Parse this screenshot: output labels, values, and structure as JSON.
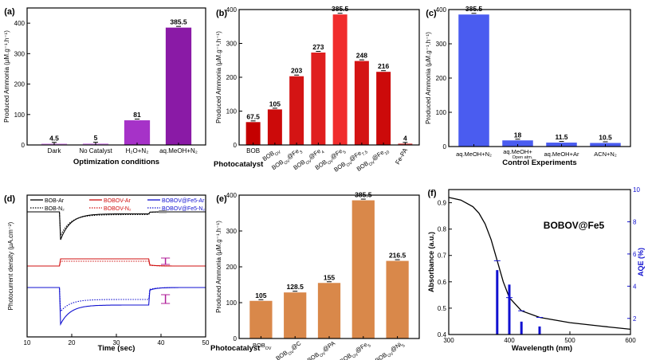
{
  "chart_data": [
    {
      "id": "a",
      "type": "bar",
      "panel_label": "(a)",
      "categories": [
        "Dark",
        "No Catalyst",
        "H₂O+N₂",
        "aq.MeOH+N₂"
      ],
      "values": [
        4.5,
        5,
        81,
        385.5
      ],
      "value_labels": [
        "4.5",
        "5",
        "81",
        "385.5"
      ],
      "colors": [
        "#dc96f0",
        "#dc96f0",
        "#a632c8",
        "#8a1aa6"
      ],
      "xlabel": "Optimization conditions",
      "ylabel": "Produced Ammonia (µM.g⁻¹.h⁻¹)",
      "ylim": [
        0,
        450
      ],
      "yticks": [
        "0",
        "100",
        "200",
        "300",
        "400"
      ]
    },
    {
      "id": "b",
      "type": "bar",
      "panel_label": "(b)",
      "categories": [
        "BOB",
        "BOBOV",
        "BOBOV@Fe3",
        "BOBOV@Fe4",
        "BOBOV@Fe5",
        "BOBOV@Fe7.5",
        "BOBOV@Fe10",
        "Fe-PA"
      ],
      "values": [
        67.5,
        105,
        203,
        273,
        385.5,
        248,
        216,
        4
      ],
      "value_labels": [
        "67.5",
        "105",
        "203",
        "273",
        "385.5",
        "248",
        "216",
        "4"
      ],
      "colors": [
        "#c40000",
        "#cc0a0a",
        "#d41414",
        "#e01e1e",
        "#f02c2c",
        "#d41414",
        "#cc0a0a",
        "#e04040"
      ],
      "xlabel": "Photocatalyst",
      "ylabel": "Produced Ammonia (µM.g⁻¹.h⁻¹)",
      "ylim": [
        0,
        400
      ],
      "yticks": [
        "0",
        "100",
        "200",
        "300",
        "400"
      ]
    },
    {
      "id": "c",
      "type": "bar",
      "panel_label": "(c)",
      "categories": [
        "aq.MeOH+N₂",
        "aq.MeOH+Open atm.",
        "aq.MeOH+Ar",
        "ACN+N₂"
      ],
      "values": [
        385.5,
        18,
        11.5,
        10.5
      ],
      "value_labels": [
        "385.5",
        "18",
        "11.5",
        "10.5"
      ],
      "colors": [
        "#4a5cf0",
        "#4a5cf0",
        "#4a5cf0",
        "#4a5cf0"
      ],
      "xlabel": "Control Experiments",
      "ylabel": "Produced Ammonia (µM.g⁻¹.h⁻¹)",
      "ylim": [
        0,
        400
      ],
      "yticks": [
        "0",
        "100",
        "200",
        "300",
        "400"
      ]
    },
    {
      "id": "d",
      "type": "line",
      "panel_label": "(d)",
      "xlabel": "Time (sec)",
      "ylabel": "Photocurrent density (µA.cm⁻²)",
      "xlim": [
        10,
        50
      ],
      "xticks": [
        "10",
        "20",
        "30",
        "40",
        "50"
      ],
      "light_on": 17.5,
      "light_off": 37.5,
      "legend": [
        {
          "name": "BOB-Ar",
          "color": "#000000",
          "style": "solid"
        },
        {
          "name": "BOB-N₂",
          "color": "#000000",
          "style": "dotted"
        },
        {
          "name": "BOBOV-Ar",
          "color": "#d01010",
          "style": "solid"
        },
        {
          "name": "BOBOV-N₂",
          "color": "#d01010",
          "style": "dotted"
        },
        {
          "name": "BOBOV@Fe5-Ar",
          "color": "#1010d0",
          "style": "solid"
        },
        {
          "name": "BOBOV@Fe5-N₂",
          "color": "#1010d0",
          "style": "dotted"
        }
      ]
    },
    {
      "id": "e",
      "type": "bar",
      "panel_label": "(e)",
      "categories": [
        "BOBOV",
        "BOBOV@C",
        "BOBOV@PA",
        "BOBOV@Fe5",
        "BOBOV@Ni5"
      ],
      "values": [
        105,
        128.5,
        155,
        385.5,
        216.5
      ],
      "value_labels": [
        "105",
        "128.5",
        "155",
        "385.5",
        "216.5"
      ],
      "colors": [
        "#d9884a",
        "#d9884a",
        "#d9884a",
        "#d9884a",
        "#d9884a"
      ],
      "xlabel": "Photocatalyst",
      "ylabel": "Produced Ammonia (µM.g⁻¹.h⁻¹)",
      "ylim": [
        0,
        400
      ],
      "yticks": [
        "0",
        "100",
        "200",
        "300",
        "400"
      ]
    },
    {
      "id": "f",
      "type": "line",
      "panel_label": "(f)",
      "title": "BOBOV@Fe5",
      "xlabel": "Wavelength (nm)",
      "ylabel": "Absorbance (a.u.)",
      "y2label": "AQE (%)",
      "xlim": [
        300,
        600
      ],
      "xticks": [
        "300",
        "400",
        "500",
        "600"
      ],
      "ylim": [
        0.4,
        0.95
      ],
      "yticks": [
        "0.4",
        "0.5",
        "0.6",
        "0.7",
        "0.8",
        "0.9"
      ],
      "y2lim": [
        1,
        10
      ],
      "y2ticks": [
        "2",
        "4",
        "6",
        "8",
        "10"
      ],
      "absorbance": [
        [
          300,
          0.92
        ],
        [
          320,
          0.91
        ],
        [
          340,
          0.885
        ],
        [
          350,
          0.86
        ],
        [
          360,
          0.82
        ],
        [
          370,
          0.76
        ],
        [
          380,
          0.68
        ],
        [
          390,
          0.6
        ],
        [
          400,
          0.54
        ],
        [
          420,
          0.49
        ],
        [
          450,
          0.465
        ],
        [
          500,
          0.445
        ],
        [
          550,
          0.432
        ],
        [
          600,
          0.42
        ]
      ],
      "aqe_bars": [
        [
          380,
          5.0
        ],
        [
          400,
          4.1
        ],
        [
          420,
          1.8
        ],
        [
          450,
          1.5
        ]
      ]
    }
  ]
}
